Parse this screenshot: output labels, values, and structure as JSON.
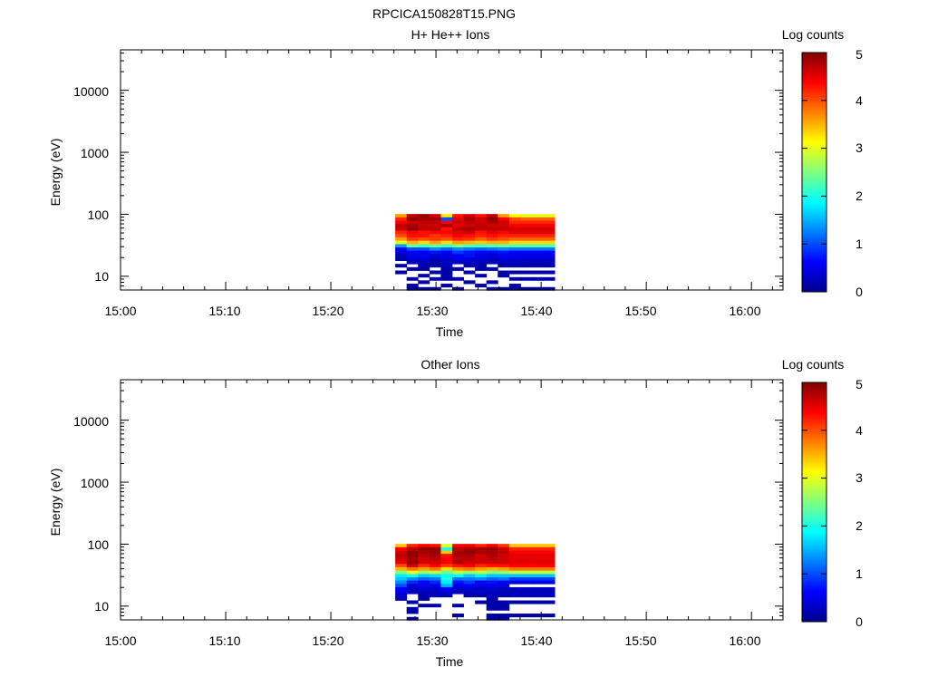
{
  "figure_title": "RPCICA150828T15.PNG",
  "chart_data": [
    {
      "type": "heatmap",
      "title": "H+ He++ Ions",
      "xlabel": "Time",
      "ylabel": "Energy (eV)",
      "colorbar_label": "Log counts",
      "colorbar_ticks": [
        "0",
        "1",
        "2",
        "3",
        "4",
        "5"
      ],
      "clim": [
        0,
        5
      ],
      "x_ticks": [
        "15:00",
        "15:10",
        "15:20",
        "15:30",
        "15:40",
        "15:50",
        "16:00"
      ],
      "xlim": [
        "15:00",
        "16:03"
      ],
      "y_scale": "log",
      "y_ticks": [
        "10",
        "100",
        "1000",
        "10000"
      ],
      "ylim": [
        6,
        45000
      ],
      "x_bins": [
        "15:26:40",
        "15:27:45",
        "15:28:50",
        "15:29:55",
        "15:31:00",
        "15:32:05",
        "15:33:10",
        "15:34:15",
        "15:35:20",
        "15:36:25",
        "15:37:30",
        "15:38:35",
        "15:39:40",
        "15:40:45"
      ],
      "energy_bins": [
        95,
        84,
        74,
        66,
        58,
        51,
        45,
        40,
        35,
        31,
        27.5,
        24.3,
        21.5,
        19,
        16.8,
        14.9,
        13.2,
        11.6,
        10.3,
        9.1,
        8.1,
        7.1,
        6.3
      ],
      "values": [
        [
          3.6,
          4.7,
          4.9,
          4.6,
          3.2,
          4.3,
          4.6,
          4.3,
          4.7,
          3.6,
          3.1,
          3.0,
          3.0,
          3.0
        ],
        [
          4.2,
          4.9,
          4.8,
          4.8,
          1.0,
          4.5,
          4.8,
          4.6,
          4.9,
          4.4,
          4.0,
          3.9,
          3.9,
          3.9
        ],
        [
          4.4,
          4.6,
          4.7,
          4.7,
          4.4,
          4.6,
          4.7,
          4.6,
          4.8,
          4.6,
          4.2,
          4.2,
          4.2,
          4.2
        ],
        [
          4.7,
          4.8,
          4.6,
          4.6,
          4.8,
          4.5,
          4.6,
          4.7,
          4.6,
          4.6,
          4.4,
          4.4,
          4.4,
          4.4
        ],
        [
          4.6,
          4.9,
          4.7,
          4.7,
          4.3,
          4.7,
          4.8,
          4.7,
          4.7,
          4.7,
          4.6,
          4.6,
          4.6,
          4.6
        ],
        [
          4.2,
          4.4,
          4.3,
          4.4,
          4.4,
          4.5,
          4.6,
          4.3,
          4.5,
          4.4,
          4.5,
          4.5,
          4.5,
          4.5
        ],
        [
          4.0,
          4.3,
          4.3,
          4.1,
          4.2,
          4.4,
          4.3,
          4.2,
          4.3,
          4.2,
          4.2,
          4.2,
          4.2,
          4.2
        ],
        [
          3.6,
          4.1,
          4.0,
          4.1,
          4.0,
          4.2,
          4.1,
          3.9,
          4.1,
          4.0,
          3.9,
          3.9,
          3.9,
          3.9
        ],
        [
          3.0,
          3.5,
          3.3,
          3.6,
          3.3,
          3.6,
          3.5,
          3.4,
          3.5,
          3.5,
          3.3,
          3.3,
          3.3,
          3.3
        ],
        [
          1.4,
          2.4,
          2.2,
          2.4,
          2.2,
          2.5,
          2.3,
          2.2,
          2.3,
          2.4,
          2.3,
          2.3,
          2.3,
          2.3
        ],
        [
          0.6,
          1.0,
          1.0,
          1.3,
          1.1,
          1.3,
          1.2,
          1.1,
          1.2,
          1.3,
          1.2,
          1.2,
          1.2,
          1.2
        ],
        [
          0.4,
          0.6,
          0.5,
          0.7,
          0.6,
          0.9,
          0.7,
          0.6,
          0.6,
          0.7,
          0.6,
          0.6,
          0.6,
          0.6
        ],
        [
          0.3,
          0.5,
          0.6,
          0.4,
          0.5,
          0.6,
          0.7,
          0.5,
          0.4,
          0.6,
          0.5,
          0.5,
          0.5,
          0.5
        ],
        [
          0.2,
          0.4,
          0.4,
          0.3,
          0.4,
          0.5,
          0.4,
          0.4,
          0.3,
          0.4,
          0.4,
          0.4,
          0.4,
          0.4
        ],
        [
          null,
          0.3,
          0.3,
          0.2,
          0.3,
          0.3,
          0.4,
          0.3,
          0.3,
          0.3,
          0.3,
          0.3,
          0.3,
          0.3
        ],
        [
          0.2,
          null,
          0.2,
          0.2,
          0.3,
          null,
          0.2,
          0.2,
          null,
          0.2,
          0.2,
          0.2,
          0.2,
          0.2
        ],
        [
          null,
          0.2,
          0.2,
          null,
          0.2,
          0.2,
          null,
          0.2,
          0.2,
          null,
          null,
          null,
          null,
          null
        ],
        [
          0.2,
          null,
          null,
          0.2,
          0.2,
          null,
          0.2,
          null,
          null,
          0.2,
          0.2,
          0.2,
          0.2,
          0.2
        ],
        [
          null,
          null,
          0.2,
          null,
          0.2,
          null,
          null,
          0.2,
          null,
          0.2,
          null,
          null,
          null,
          null
        ],
        [
          null,
          0.2,
          null,
          0.2,
          0.2,
          0.2,
          null,
          null,
          null,
          null,
          0.2,
          0.2,
          0.2,
          0.2
        ],
        [
          null,
          null,
          0.2,
          null,
          null,
          null,
          0.2,
          null,
          0.2,
          null,
          null,
          null,
          null,
          null
        ],
        [
          null,
          0.2,
          null,
          null,
          0.2,
          null,
          null,
          0.2,
          null,
          null,
          0.2,
          null,
          null,
          null
        ],
        [
          null,
          0.2,
          0.2,
          0.2,
          null,
          0.2,
          null,
          null,
          0.2,
          0.2,
          0.2,
          0.2,
          0.2,
          0.2
        ]
      ]
    },
    {
      "type": "heatmap",
      "title": "Other Ions",
      "xlabel": "Time",
      "ylabel": "Energy (eV)",
      "colorbar_label": "Log counts",
      "colorbar_ticks": [
        "0",
        "1",
        "2",
        "3",
        "4",
        "5"
      ],
      "clim": [
        0,
        5
      ],
      "x_ticks": [
        "15:00",
        "15:10",
        "15:20",
        "15:30",
        "15:40",
        "15:50",
        "16:00"
      ],
      "xlim": [
        "15:00",
        "16:03"
      ],
      "y_scale": "log",
      "y_ticks": [
        "10",
        "100",
        "1000",
        "10000"
      ],
      "ylim": [
        6,
        45000
      ],
      "x_bins": [
        "15:26:40",
        "15:27:45",
        "15:28:50",
        "15:29:55",
        "15:31:00",
        "15:32:05",
        "15:33:10",
        "15:34:15",
        "15:35:20",
        "15:36:25",
        "15:37:30",
        "15:38:35",
        "15:39:40",
        "15:40:45"
      ],
      "energy_bins": [
        95,
        84,
        74,
        66,
        58,
        51,
        45,
        40,
        35,
        31,
        27.5,
        24.3,
        21.5,
        19,
        16.8,
        14.9,
        13.2,
        11.6,
        10.3,
        9.1,
        8.1,
        7.1,
        6.3
      ],
      "values": [
        [
          3.4,
          4.2,
          4.4,
          4.3,
          3.0,
          4.4,
          4.4,
          4.2,
          4.4,
          4.1,
          3.4,
          3.4,
          3.4,
          3.4
        ],
        [
          4.4,
          4.7,
          4.9,
          4.9,
          2.0,
          4.7,
          4.8,
          4.8,
          4.9,
          4.6,
          4.2,
          4.2,
          4.2,
          4.2
        ],
        [
          4.6,
          4.9,
          4.8,
          4.9,
          3.4,
          4.8,
          4.9,
          4.8,
          4.8,
          4.7,
          4.4,
          4.4,
          4.4,
          4.4
        ],
        [
          4.7,
          4.9,
          4.7,
          4.8,
          4.3,
          4.8,
          4.8,
          4.6,
          4.8,
          4.6,
          4.5,
          4.5,
          4.5,
          4.5
        ],
        [
          4.6,
          4.8,
          4.6,
          4.7,
          4.4,
          4.7,
          4.7,
          4.6,
          4.7,
          4.6,
          4.5,
          4.5,
          4.5,
          4.5
        ],
        [
          4.5,
          4.9,
          4.6,
          4.6,
          4.4,
          4.8,
          4.6,
          4.6,
          4.6,
          4.6,
          4.5,
          4.5,
          4.5,
          4.5
        ],
        [
          4.0,
          4.6,
          4.2,
          4.4,
          4.1,
          4.3,
          4.4,
          4.2,
          4.3,
          4.3,
          4.4,
          4.4,
          4.4,
          4.4
        ],
        [
          3.5,
          3.8,
          3.6,
          3.8,
          3.3,
          3.7,
          3.8,
          3.6,
          3.5,
          3.6,
          3.8,
          3.8,
          3.8,
          3.8
        ],
        [
          2.5,
          3.0,
          2.6,
          2.8,
          2.4,
          2.8,
          2.6,
          2.8,
          2.5,
          2.6,
          2.8,
          2.8,
          2.8,
          2.8
        ],
        [
          1.8,
          2.0,
          1.6,
          1.7,
          1.9,
          1.9,
          1.6,
          1.8,
          1.6,
          1.6,
          1.6,
          1.6,
          1.6,
          1.6
        ],
        [
          1.6,
          1.3,
          1.1,
          1.2,
          2.0,
          1.2,
          1.2,
          1.3,
          1.1,
          1.2,
          0.9,
          0.9,
          0.9,
          0.9
        ],
        [
          1.3,
          0.8,
          0.6,
          0.8,
          1.8,
          0.7,
          0.9,
          0.6,
          0.7,
          0.6,
          0.5,
          0.5,
          0.5,
          0.5
        ],
        [
          1.0,
          0.4,
          0.5,
          0.5,
          1.5,
          0.5,
          0.6,
          0.5,
          0.5,
          0.5,
          null,
          null,
          null,
          null
        ],
        [
          0.6,
          0.3,
          0.4,
          0.4,
          0.6,
          0.3,
          0.4,
          0.3,
          0.4,
          0.3,
          0.3,
          0.3,
          0.3,
          0.3
        ],
        [
          0.5,
          0.3,
          0.3,
          0.3,
          0.4,
          0.3,
          0.3,
          0.4,
          0.3,
          0.3,
          0.3,
          0.3,
          0.3,
          0.3
        ],
        [
          0.3,
          null,
          0.2,
          0.3,
          0.2,
          null,
          0.2,
          0.2,
          0.3,
          0.2,
          0.3,
          0.3,
          0.3,
          0.3
        ],
        [
          0.3,
          null,
          0.2,
          null,
          null,
          null,
          null,
          null,
          0.2,
          null,
          null,
          null,
          null,
          null
        ],
        [
          null,
          0.2,
          null,
          null,
          null,
          null,
          null,
          0.2,
          0.2,
          0.2,
          0.2,
          0.2,
          0.2,
          0.2
        ],
        [
          null,
          null,
          0.2,
          0.2,
          null,
          0.2,
          null,
          null,
          0.2,
          0.2,
          null,
          null,
          null,
          null
        ],
        [
          null,
          0.2,
          null,
          null,
          null,
          null,
          null,
          null,
          0.2,
          0.2,
          null,
          null,
          null,
          null
        ],
        [
          null,
          0.2,
          null,
          null,
          null,
          null,
          null,
          null,
          null,
          null,
          null,
          null,
          null,
          null
        ],
        [
          null,
          null,
          null,
          null,
          null,
          0.2,
          null,
          null,
          0.2,
          0.2,
          0.2,
          0.2,
          0.2,
          0.2
        ],
        [
          null,
          0.2,
          null,
          null,
          null,
          null,
          null,
          null,
          0.2,
          0.2,
          null,
          null,
          null,
          null
        ]
      ]
    }
  ]
}
